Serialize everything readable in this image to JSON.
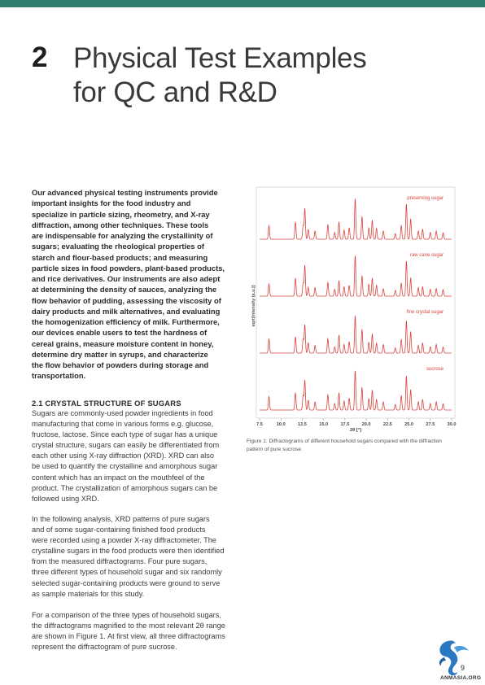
{
  "header": {
    "chapter_number": "2",
    "title_lines": [
      "Physical Test Examples",
      "for QC and R&D"
    ]
  },
  "intro_lines": [
    "Our advanced physical testing instruments provide",
    "important insights for the food industry and",
    "specialize in particle sizing, rheometry, and X-ray",
    "diffraction, among other techniques. These tools",
    "are indispensable for analyzing the crystallinity of",
    "sugars; evaluating the rheological properties of",
    "starch and flour-based products; and measuring",
    "particle sizes in food powders, plant-based products,",
    "and rice derivatives. Our instruments are also adept",
    "at determining the density of sauces, analyzing the",
    "flow behavior of pudding, assessing the viscosity of",
    "dairy products and milk alternatives, and evaluating",
    "the homogenization efficiency of milk. Furthermore,",
    "our devices enable users to test the hardness of",
    "cereal grains, measure moisture content in honey,",
    "determine dry matter in syrups, and characterize",
    "the flow behavior of powders during storage and",
    "transportation."
  ],
  "section": {
    "heading": "2.1 CRYSTAL STRUCTURE OF SUGARS",
    "p1_lines": [
      "Sugars are commonly-used powder ingredients in food",
      "manufacturing that come in various forms e.g. glucose,",
      "fructose, lactose. Since each type of sugar has a unique",
      "crystal structure, sugars can easily be differentiated from",
      "each other using X-ray diffraction (XRD). XRD can also",
      "be used to quantify the crystalline and amorphous sugar",
      "content which has an impact on the mouthfeel of the",
      "product. The crystallization of amorphous sugars can be",
      "followed using XRD."
    ],
    "p2_lines": [
      "In the following analysis, XRD patterns of pure sugars",
      "and of some sugar-containing finished food products",
      "were recorded using a powder X-ray diffractometer. The",
      "crystalline sugars in the food products were then identified",
      "from the measured diffractograms. Four pure sugars,",
      "three different types of household sugar and six randomly",
      "selected sugar-containing products were ground to serve",
      "as sample materials for this study."
    ],
    "p3_lines": [
      "For a comparison of the three types of household sugars,",
      "the diffractograms magnified to the most relevant 2θ range",
      "are shown in Figure 1. At first view, all three diffractograms",
      "represent the diffractogram of pure sucrose."
    ]
  },
  "figure": {
    "caption_lines": [
      "Figure 1: Diffractograms of different household sugars compared with the diffraction",
      "pattern of pure sucrose."
    ]
  },
  "chart_data": {
    "type": "line",
    "title": "",
    "xlabel": "2θ [°]",
    "ylabel": "sqrt(intensity (a.u.))",
    "xlim": [
      7.5,
      30.0
    ],
    "x_ticks": [
      "7.5",
      "10.0",
      "12.5",
      "15.0",
      "17.5",
      "20.0",
      "22.5",
      "25.0",
      "27.5",
      "30.0"
    ],
    "grid": false,
    "line_color": "#d9443c",
    "peaks": [
      {
        "x": 8.6,
        "h": 0.3
      },
      {
        "x": 11.7,
        "h": 0.38
      },
      {
        "x": 12.6,
        "h": 0.3
      },
      {
        "x": 12.8,
        "h": 0.68
      },
      {
        "x": 13.2,
        "h": 0.22
      },
      {
        "x": 14.0,
        "h": 0.18
      },
      {
        "x": 15.5,
        "h": 0.32
      },
      {
        "x": 16.3,
        "h": 0.15
      },
      {
        "x": 16.8,
        "h": 0.38
      },
      {
        "x": 17.4,
        "h": 0.2
      },
      {
        "x": 18.0,
        "h": 0.25
      },
      {
        "x": 18.7,
        "h": 0.9
      },
      {
        "x": 19.5,
        "h": 0.5
      },
      {
        "x": 20.3,
        "h": 0.25
      },
      {
        "x": 20.7,
        "h": 0.42
      },
      {
        "x": 21.2,
        "h": 0.24
      },
      {
        "x": 22.0,
        "h": 0.18
      },
      {
        "x": 23.4,
        "h": 0.12
      },
      {
        "x": 24.1,
        "h": 0.3
      },
      {
        "x": 24.7,
        "h": 0.78
      },
      {
        "x": 25.2,
        "h": 0.45
      },
      {
        "x": 26.1,
        "h": 0.18
      },
      {
        "x": 26.6,
        "h": 0.22
      },
      {
        "x": 27.5,
        "h": 0.15
      },
      {
        "x": 28.2,
        "h": 0.18
      },
      {
        "x": 29.0,
        "h": 0.14
      }
    ],
    "series": [
      {
        "name": "preserving sugar"
      },
      {
        "name": "raw cane sugar"
      },
      {
        "name": "fine crystal sugar"
      },
      {
        "name": "sucrose"
      }
    ]
  },
  "footer": {
    "page_number": "9",
    "logo_text": "ANMASIA.ORG"
  }
}
